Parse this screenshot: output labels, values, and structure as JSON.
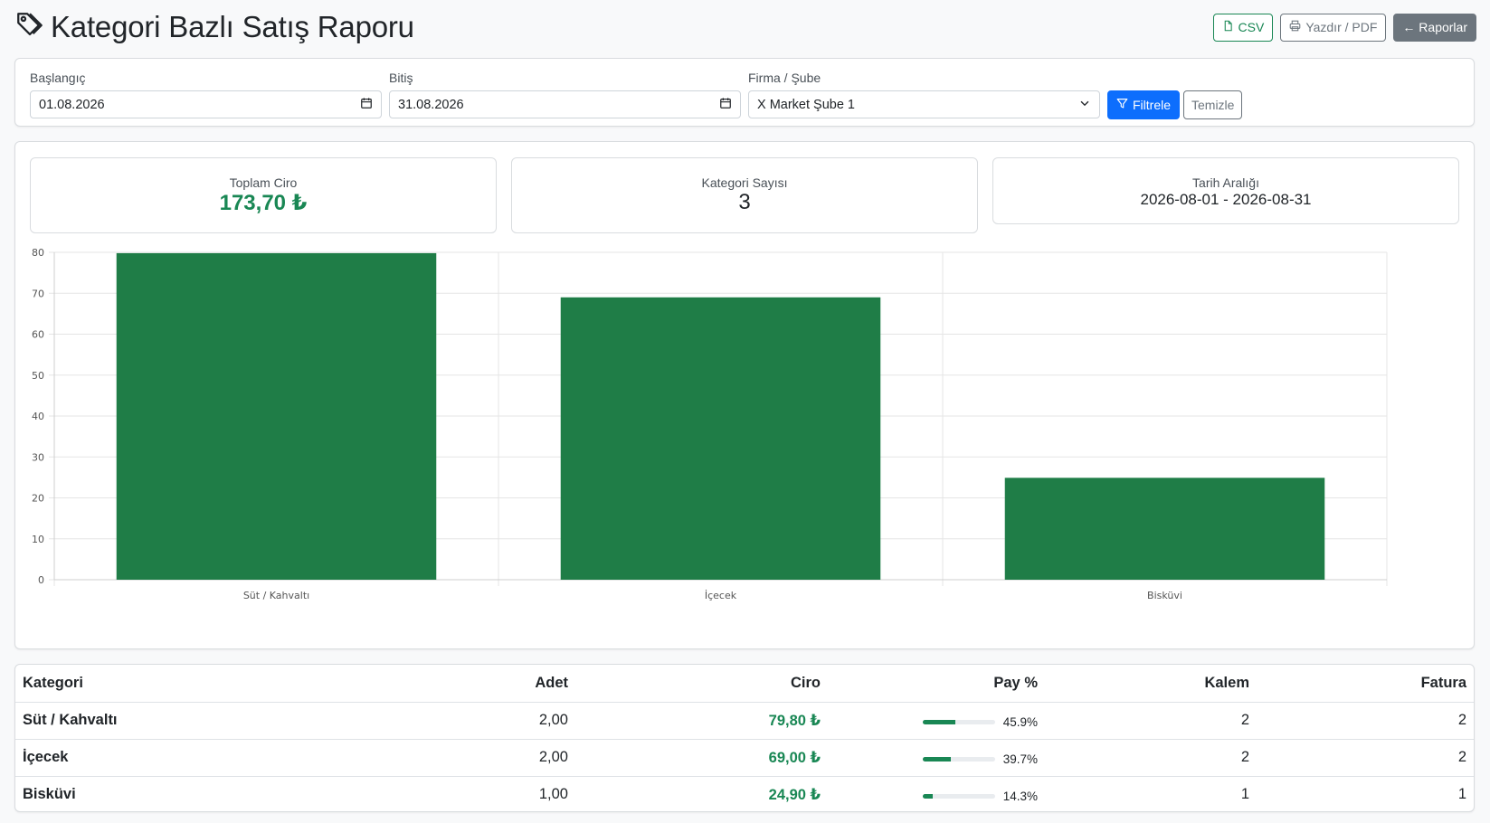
{
  "header": {
    "title": "Kategori Bazlı Satış Raporu",
    "csv_label": "CSV",
    "print_label": "Yazdır / PDF",
    "back_label": "← Raporlar"
  },
  "filters": {
    "start_label": "Başlangıç",
    "start_value": "01.08.2026",
    "end_label": "Bitiş",
    "end_value": "31.08.2026",
    "branch_label": "Firma / Şube",
    "branch_value": "X Market Şube 1",
    "filter_button": "Filtrele",
    "clear_button": "Temizle"
  },
  "stats": {
    "total_label": "Toplam Ciro",
    "total_value": "173,70 ₺",
    "count_label": "Kategori Sayısı",
    "count_value": "3",
    "range_label": "Tarih Aralığı",
    "range_value": "2026-08-01 - 2026-08-31"
  },
  "colors": {
    "bar": "#1f7d47",
    "accent": "#198754",
    "primary": "#0d6efd"
  },
  "chart_data": {
    "type": "bar",
    "categories": [
      "Süt / Kahvaltı",
      "İçecek",
      "Bisküvi"
    ],
    "values": [
      79.8,
      69.0,
      24.9
    ],
    "ylim": [
      0,
      80
    ],
    "yticks": [
      0,
      10,
      20,
      30,
      40,
      50,
      60,
      70,
      80
    ],
    "grid": true
  },
  "table": {
    "headers": [
      "Kategori",
      "Adet",
      "Ciro",
      "Pay %",
      "Kalem",
      "Fatura"
    ],
    "rows": [
      {
        "kategori": "Süt / Kahvaltı",
        "adet": "2,00",
        "ciro": "79,80 ₺",
        "pay": "45.9%",
        "pay_value": 45.9,
        "kalem": "2",
        "fatura": "2"
      },
      {
        "kategori": "İçecek",
        "adet": "2,00",
        "ciro": "69,00 ₺",
        "pay": "39.7%",
        "pay_value": 39.7,
        "kalem": "2",
        "fatura": "2"
      },
      {
        "kategori": "Bisküvi",
        "adet": "1,00",
        "ciro": "24,90 ₺",
        "pay": "14.3%",
        "pay_value": 14.3,
        "kalem": "1",
        "fatura": "1"
      }
    ]
  }
}
